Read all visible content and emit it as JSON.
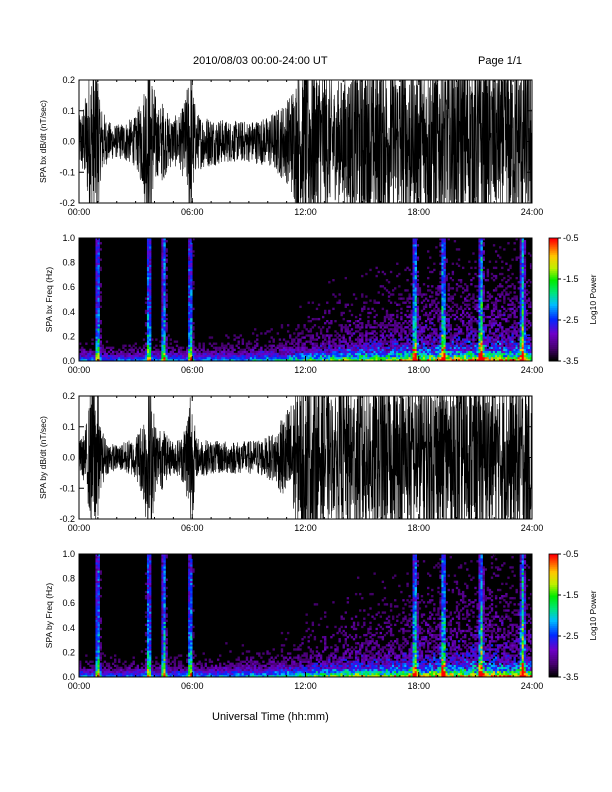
{
  "header": {
    "title": "2010/08/03  00:00-24:00 UT",
    "page": "Page 1/1"
  },
  "figure": {
    "xlabel": "Universal Time (hh:mm)"
  },
  "chart_data": [
    {
      "type": "line",
      "title": "",
      "ylabel": "SPA bx dB/dt (nT/sec)",
      "xlabel": "",
      "xlim": [
        0,
        24
      ],
      "ylim": [
        -0.2,
        0.2
      ],
      "x_ticks": [
        "00:00",
        "06:00",
        "12:00",
        "18:00",
        "24:00"
      ],
      "y_ticks": [
        "-0.2",
        "-0.1",
        "0.0",
        "0.1",
        "0.2"
      ],
      "envelope": {
        "x_hours": [
          0,
          0.3,
          0.5,
          0.7,
          0.9,
          1.0,
          1.1,
          1.5,
          2.0,
          2.5,
          3.0,
          3.4,
          3.6,
          3.8,
          4.0,
          4.2,
          4.4,
          4.7,
          5.0,
          5.4,
          5.7,
          5.9,
          6.2,
          7.0,
          8.0,
          9.0,
          10.0,
          10.5,
          11.0,
          11.5,
          12.0,
          12.5,
          13.0,
          13.5,
          14.0,
          15.0,
          16.0,
          16.5,
          17.0,
          17.5,
          17.8,
          18.0,
          18.5,
          19.0,
          20.0,
          21.0,
          21.5,
          22.0,
          23.0,
          24.0
        ],
        "amplitude": [
          0.06,
          0.1,
          0.16,
          0.2,
          0.2,
          0.2,
          0.1,
          0.05,
          0.04,
          0.05,
          0.06,
          0.12,
          0.2,
          0.2,
          0.13,
          0.08,
          0.1,
          0.07,
          0.06,
          0.07,
          0.12,
          0.2,
          0.07,
          0.06,
          0.05,
          0.05,
          0.06,
          0.08,
          0.1,
          0.16,
          0.2,
          0.2,
          0.18,
          0.14,
          0.16,
          0.2,
          0.2,
          0.18,
          0.2,
          0.2,
          0.16,
          0.2,
          0.2,
          0.2,
          0.2,
          0.2,
          0.2,
          0.18,
          0.2,
          0.2
        ]
      }
    },
    {
      "type": "heatmap",
      "title": "",
      "ylabel": "SPA bx Freq (Hz)",
      "xlabel": "",
      "xlim": [
        0,
        24
      ],
      "ylim": [
        0,
        1.0
      ],
      "x_ticks": [
        "00:00",
        "06:00",
        "12:00",
        "18:00",
        "24:00"
      ],
      "y_ticks": [
        "0.0",
        "0.2",
        "0.4",
        "0.6",
        "0.8",
        "1.0"
      ],
      "colorbar": {
        "label": "Log10 Power",
        "range": [
          -3.5,
          -0.5
        ],
        "ticks": [
          "-0.5",
          "-1.5",
          "-2.5",
          "-3.5"
        ]
      },
      "broadband_bursts_hours": [
        1.0,
        3.7,
        4.5,
        5.9,
        17.8,
        19.3,
        21.3,
        23.5
      ],
      "activity_trend": {
        "x_hours": [
          0,
          2,
          4,
          6,
          8,
          10,
          12,
          14,
          16,
          18,
          20,
          22,
          24
        ],
        "level": [
          0.2,
          0.15,
          0.2,
          0.2,
          0.25,
          0.3,
          0.45,
          0.6,
          0.65,
          0.75,
          0.8,
          0.85,
          0.8
        ]
      }
    },
    {
      "type": "line",
      "title": "",
      "ylabel": "SPA by dB/dt (nT/sec)",
      "xlabel": "",
      "xlim": [
        0,
        24
      ],
      "ylim": [
        -0.2,
        0.2
      ],
      "x_ticks": [
        "00:00",
        "06:00",
        "12:00",
        "18:00",
        "24:00"
      ],
      "y_ticks": [
        "-0.2",
        "-0.1",
        "0.0",
        "0.1",
        "0.2"
      ],
      "envelope": {
        "x_hours": [
          0,
          0.3,
          0.5,
          0.7,
          0.9,
          1.0,
          1.1,
          1.5,
          2.0,
          2.5,
          3.0,
          3.4,
          3.6,
          3.8,
          4.0,
          4.2,
          4.4,
          4.7,
          5.0,
          5.4,
          5.7,
          5.9,
          6.2,
          7.0,
          8.0,
          9.0,
          10.0,
          10.5,
          11.0,
          11.5,
          12.0,
          12.5,
          13.0,
          13.5,
          14.0,
          15.0,
          16.0,
          16.5,
          17.0,
          17.5,
          17.8,
          18.0,
          18.5,
          19.0,
          20.0,
          21.0,
          21.5,
          22.0,
          23.0,
          24.0
        ],
        "amplitude": [
          0.04,
          0.06,
          0.12,
          0.2,
          0.2,
          0.2,
          0.08,
          0.04,
          0.03,
          0.04,
          0.05,
          0.1,
          0.2,
          0.2,
          0.1,
          0.06,
          0.08,
          0.05,
          0.04,
          0.05,
          0.1,
          0.2,
          0.05,
          0.04,
          0.04,
          0.04,
          0.05,
          0.07,
          0.12,
          0.16,
          0.2,
          0.2,
          0.18,
          0.14,
          0.18,
          0.2,
          0.2,
          0.18,
          0.2,
          0.2,
          0.16,
          0.2,
          0.2,
          0.2,
          0.2,
          0.2,
          0.2,
          0.18,
          0.2,
          0.2
        ]
      }
    },
    {
      "type": "heatmap",
      "title": "",
      "ylabel": "SPA by Freq (Hz)",
      "xlabel": "",
      "xlim": [
        0,
        24
      ],
      "ylim": [
        0,
        1.0
      ],
      "x_ticks": [
        "00:00",
        "06:00",
        "12:00",
        "18:00",
        "24:00"
      ],
      "y_ticks": [
        "0.0",
        "0.2",
        "0.4",
        "0.6",
        "0.8",
        "1.0"
      ],
      "colorbar": {
        "label": "Log10 Power",
        "range": [
          -3.5,
          -0.5
        ],
        "ticks": [
          "-0.5",
          "-1.5",
          "-2.5",
          "-3.5"
        ]
      },
      "broadband_bursts_hours": [
        1.0,
        3.7,
        4.5,
        5.9,
        17.8,
        19.3,
        21.3,
        23.5
      ],
      "activity_trend": {
        "x_hours": [
          0,
          2,
          4,
          6,
          8,
          10,
          12,
          14,
          16,
          18,
          20,
          22,
          24
        ],
        "level": [
          0.2,
          0.15,
          0.2,
          0.2,
          0.25,
          0.3,
          0.45,
          0.6,
          0.65,
          0.75,
          0.8,
          0.85,
          0.8
        ]
      }
    }
  ]
}
